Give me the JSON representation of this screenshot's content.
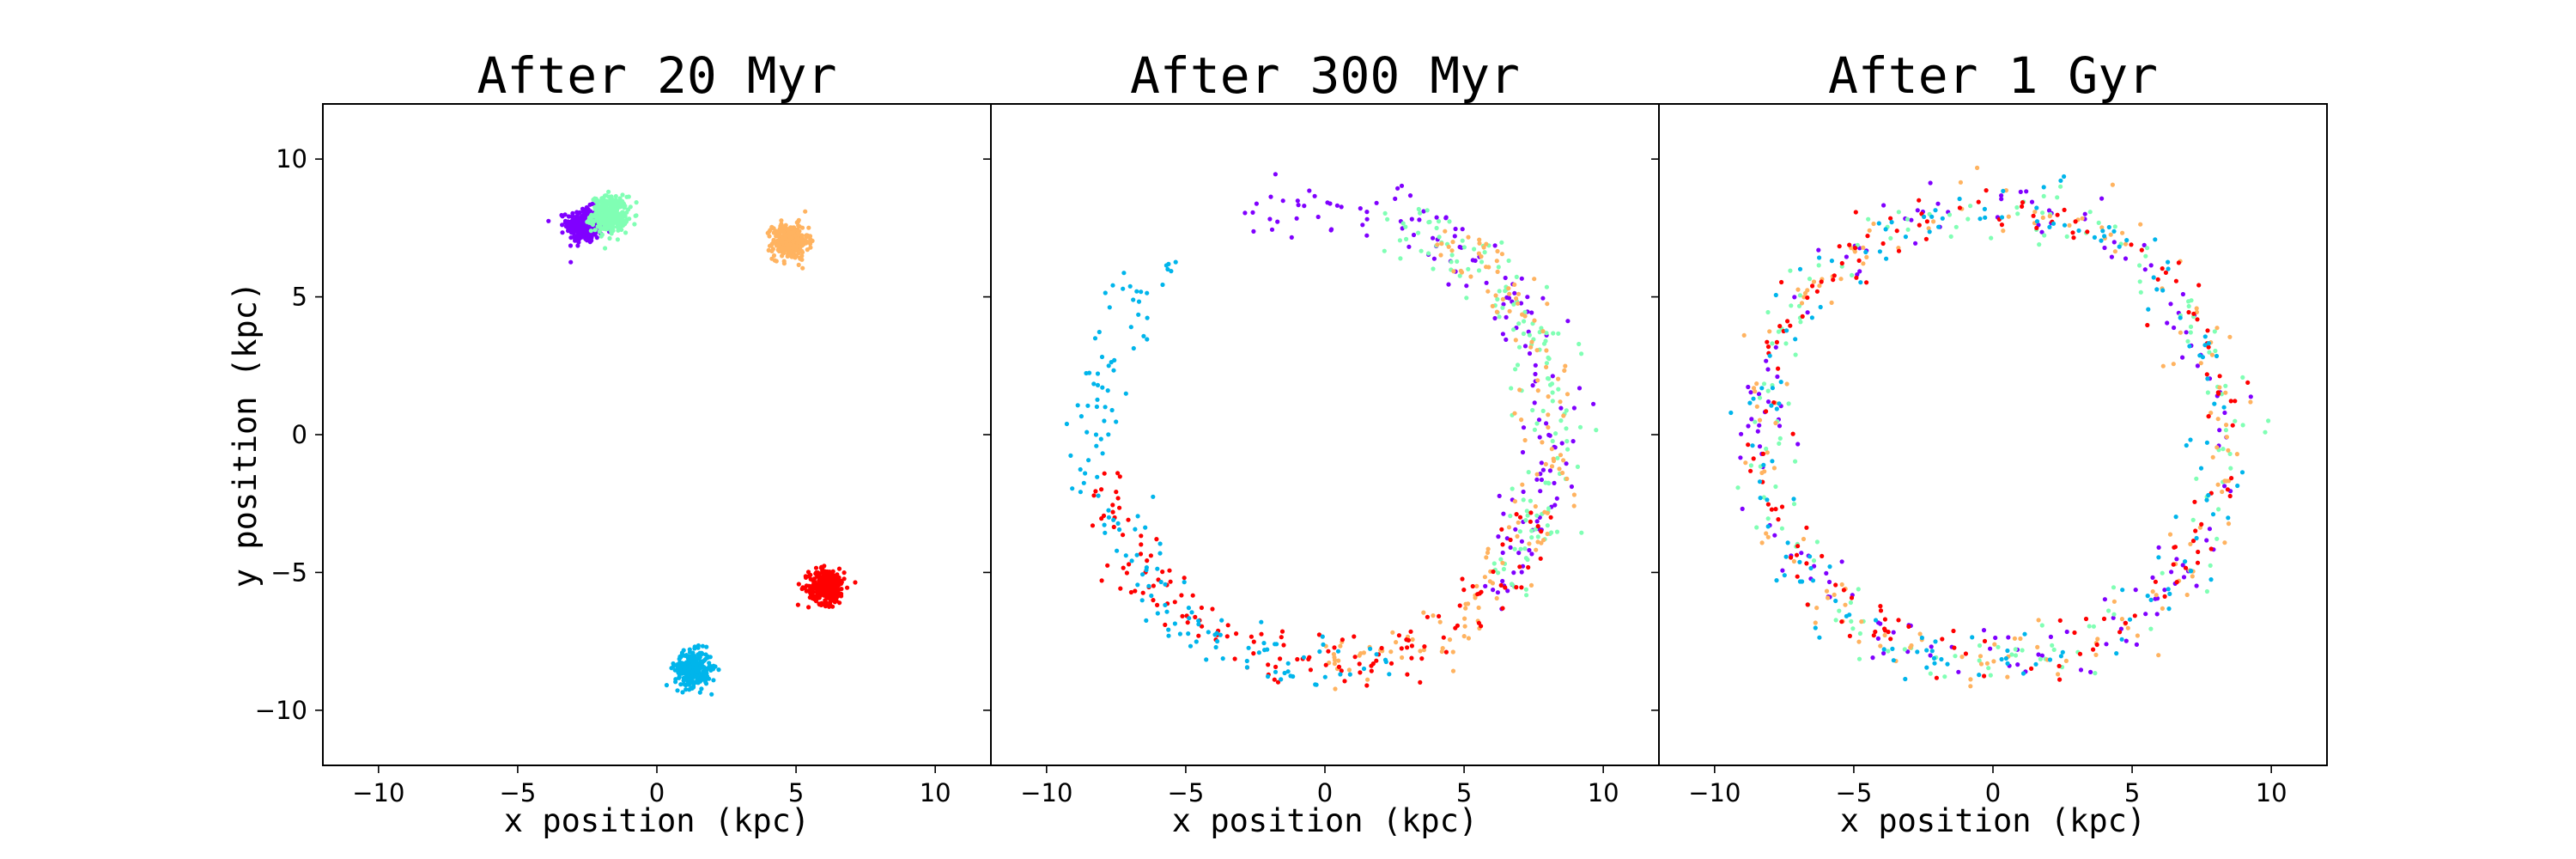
{
  "chart_data": [
    {
      "type": "scatter",
      "title": "After 20 Myr",
      "xlabel": "x position (kpc)",
      "ylabel": "y position (kpc)",
      "xlim": [
        -12,
        12
      ],
      "ylim": [
        -12,
        12
      ],
      "xticks": [
        -10,
        -5,
        0,
        5,
        10
      ],
      "yticks": [
        -10,
        -5,
        0,
        5,
        10
      ],
      "grid": false,
      "legend": "none",
      "series": [
        {
          "color": "#8000ff",
          "clusters": [
            {
              "x": -2.6,
              "y": 7.6
            }
          ]
        },
        {
          "color": "#80ffb4",
          "clusters": [
            {
              "x": -1.7,
              "y": 8.0
            }
          ]
        },
        {
          "color": "#ffb360",
          "clusters": [
            {
              "x": 4.8,
              "y": 7.0
            }
          ]
        },
        {
          "color": "#ff0000",
          "clusters": [
            {
              "x": 6.1,
              "y": -5.5
            }
          ]
        },
        {
          "color": "#00b5eb",
          "clusters": [
            {
              "x": 1.3,
              "y": -8.5
            }
          ]
        }
      ]
    },
    {
      "type": "scatter",
      "title": "After 300 Myr",
      "xlabel": "x position (kpc)",
      "ylabel": "",
      "xlim": [
        -12,
        12
      ],
      "ylim": [
        -12,
        12
      ],
      "xticks": [
        -10,
        -5,
        0,
        5,
        10
      ],
      "yticks": [],
      "grid": false,
      "legend": "none",
      "ring_center": [
        0,
        0
      ],
      "ring_radius_kpc": 8.3,
      "series": [
        {
          "color": "#8000ff",
          "arc_start_deg": -45,
          "arc_end_deg": 110
        },
        {
          "color": "#80ffb4",
          "arc_start_deg": -40,
          "arc_end_deg": 75
        },
        {
          "color": "#ffb360",
          "arc_start_deg": -90,
          "arc_end_deg": 60
        },
        {
          "color": "#ff0000",
          "arc_start_deg": 190,
          "arc_end_deg": 340
        },
        {
          "color": "#00b5eb",
          "arc_start_deg": 130,
          "arc_end_deg": 285
        }
      ]
    },
    {
      "type": "scatter",
      "title": "After 1 Gyr",
      "xlabel": "x position (kpc)",
      "ylabel": "",
      "xlim": [
        -12,
        12
      ],
      "ylim": [
        -12,
        12
      ],
      "xticks": [
        -10,
        -5,
        0,
        5,
        10
      ],
      "yticks": [],
      "grid": false,
      "legend": "none",
      "ring_center": [
        0,
        0
      ],
      "ring_radius_kpc": 8.3,
      "series": [
        {
          "color": "#8000ff",
          "arc_start_deg": 0,
          "arc_end_deg": 360
        },
        {
          "color": "#80ffb4",
          "arc_start_deg": 0,
          "arc_end_deg": 360
        },
        {
          "color": "#ffb360",
          "arc_start_deg": 0,
          "arc_end_deg": 360
        },
        {
          "color": "#ff0000",
          "arc_start_deg": 0,
          "arc_end_deg": 360
        },
        {
          "color": "#00b5eb",
          "arc_start_deg": 0,
          "arc_end_deg": 360
        }
      ]
    }
  ]
}
